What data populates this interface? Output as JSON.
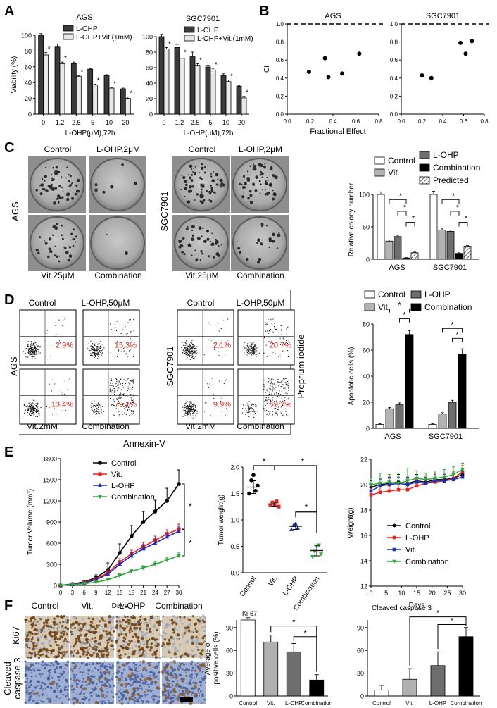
{
  "panels": {
    "A": "A",
    "B": "B",
    "C": "C",
    "D": "D",
    "E": "E",
    "F": "F"
  },
  "chart_data": [
    {
      "id": "A_AGS",
      "type": "bar",
      "title": "AGS",
      "xlabel": "L-OHP(μM),72h",
      "ylabel": "Viability (%)",
      "ylim": [
        0,
        100
      ],
      "yticks": [
        "0",
        "20",
        "40",
        "60",
        "80",
        "100"
      ],
      "categories": [
        "0",
        "1.2",
        "2.5",
        "5",
        "10",
        "20"
      ],
      "series": [
        {
          "name": "L-OHP",
          "values": [
            100,
            85,
            64,
            57,
            49,
            32
          ],
          "err": [
            2,
            4,
            2,
            1,
            1,
            1
          ]
        },
        {
          "name": "L-OHP+Vit.(1mM)",
          "values": [
            75,
            64,
            48,
            37,
            33,
            20
          ],
          "err": [
            3,
            2,
            1,
            1,
            1,
            2
          ]
        }
      ],
      "sig": [
        "*",
        "*",
        "*",
        "*",
        "*",
        "*"
      ]
    },
    {
      "id": "A_SGC7901",
      "type": "bar",
      "title": "SGC7901",
      "xlabel": "L-OHP(μM),72h",
      "ylabel": "",
      "ylim": [
        0,
        100
      ],
      "yticks": [
        "0",
        "20",
        "40",
        "60",
        "80",
        "100"
      ],
      "categories": [
        "0",
        "1.2",
        "2.5",
        "5",
        "10",
        "20"
      ],
      "series": [
        {
          "name": "L-OHP",
          "values": [
            100,
            86,
            74,
            61,
            50,
            36
          ],
          "err": [
            3,
            4,
            6,
            2,
            2,
            1
          ]
        },
        {
          "name": "L-OHP+Vit.(1mM)",
          "values": [
            84,
            72,
            63,
            57,
            42,
            21
          ],
          "err": [
            2,
            3,
            2,
            2,
            2,
            2
          ]
        }
      ],
      "sig": [
        "*",
        "*",
        "*",
        "*",
        "*",
        "*"
      ]
    },
    {
      "id": "B_AGS",
      "type": "scatter",
      "title": "AGS",
      "xlabel": "Fractional Effect",
      "ylabel": "CI",
      "xlim": [
        0,
        0.8
      ],
      "ylim": [
        0,
        1.0
      ],
      "xticks": [
        "0.0",
        "0.2",
        "0.4",
        "0.6",
        "0.8"
      ],
      "yticks": [
        "0.0",
        "0.2",
        "0.4",
        "0.6",
        "0.8",
        "1.0"
      ],
      "points": [
        [
          0.19,
          0.47
        ],
        [
          0.33,
          0.62
        ],
        [
          0.36,
          0.41
        ],
        [
          0.48,
          0.45
        ],
        [
          0.63,
          0.67
        ]
      ],
      "reference_line": 1.0
    },
    {
      "id": "B_SGC7901",
      "type": "scatter",
      "title": "SGC7901",
      "xlabel": "",
      "ylabel": "",
      "xlim": [
        0,
        0.8
      ],
      "ylim": [
        0,
        1.0
      ],
      "xticks": [
        "0.0",
        "0.2",
        "0.4",
        "0.6",
        "0.8"
      ],
      "yticks": [
        "0.0",
        "0.2",
        "0.4",
        "0.6",
        "0.8",
        "1.0"
      ],
      "points": [
        [
          0.2,
          0.43
        ],
        [
          0.29,
          0.4
        ],
        [
          0.57,
          0.79
        ],
        [
          0.62,
          0.67
        ],
        [
          0.68,
          0.81
        ]
      ],
      "reference_line": 1.0
    },
    {
      "id": "C_bar",
      "type": "bar",
      "title": "",
      "xlabel": "",
      "ylabel": "Relative colony number",
      "ylim": [
        0,
        100
      ],
      "yticks": [
        "0",
        "50",
        "100"
      ],
      "categories": [
        "AGS",
        "SGC7901"
      ],
      "series": [
        {
          "name": "Control",
          "values": [
            100,
            100
          ],
          "err": [
            4,
            5
          ]
        },
        {
          "name": "Vit.",
          "values": [
            28,
            45
          ],
          "err": [
            2,
            2
          ]
        },
        {
          "name": "L-OHP",
          "values": [
            35,
            43
          ],
          "err": [
            2,
            2
          ]
        },
        {
          "name": "Combination",
          "values": [
            2,
            9
          ],
          "err": [
            0.5,
            1
          ]
        },
        {
          "name": "Predicted",
          "values": [
            10,
            20
          ],
          "err": [
            1,
            1
          ]
        }
      ],
      "sig": [
        "*",
        "*",
        "*"
      ]
    },
    {
      "id": "D_bar",
      "type": "bar",
      "title": "",
      "xlabel": "",
      "ylabel": "Apoptotic cells (%)",
      "ylim": [
        0,
        80
      ],
      "yticks": [
        "0",
        "20",
        "40",
        "60",
        "80"
      ],
      "categories": [
        "AGS",
        "SGC7901"
      ],
      "series": [
        {
          "name": "Control",
          "values": [
            3,
            3
          ],
          "err": [
            0.5,
            0.5
          ]
        },
        {
          "name": "Vit.",
          "values": [
            15,
            11
          ],
          "err": [
            1,
            1
          ]
        },
        {
          "name": "L-OHP",
          "values": [
            18,
            20
          ],
          "err": [
            1.5,
            1.5
          ]
        },
        {
          "name": "Combination",
          "values": [
            72,
            57
          ],
          "err": [
            3,
            4
          ]
        }
      ],
      "sig": [
        "*",
        "*"
      ]
    },
    {
      "id": "E_volume",
      "type": "line",
      "title": "",
      "xlabel": "Days",
      "ylabel": "Tumor Volume (mm³)",
      "ylim": [
        0,
        1800
      ],
      "yticks": [
        "0",
        "300",
        "600",
        "900",
        "1200",
        "1500",
        "1800"
      ],
      "x": [
        0,
        3,
        6,
        9,
        12,
        15,
        18,
        21,
        24,
        27,
        30
      ],
      "xticks": [
        "0",
        "3",
        "6",
        "9",
        "12",
        "15",
        "18",
        "21",
        "24",
        "27",
        "30"
      ],
      "series": [
        {
          "name": "Control",
          "values": [
            0,
            20,
            50,
            110,
            220,
            460,
            700,
            900,
            1050,
            1200,
            1440
          ],
          "err": [
            0,
            0,
            10,
            40,
            100,
            130,
            150,
            150,
            160,
            180,
            200
          ]
        },
        {
          "name": "Vit.",
          "values": [
            0,
            15,
            40,
            90,
            180,
            330,
            450,
            550,
            640,
            730,
            800
          ],
          "err": [
            0,
            0,
            8,
            15,
            40,
            50,
            50,
            60,
            60,
            60,
            70
          ]
        },
        {
          "name": "L-OHP",
          "values": [
            0,
            15,
            35,
            80,
            160,
            300,
            420,
            520,
            600,
            690,
            770
          ],
          "err": [
            0,
            0,
            8,
            15,
            40,
            50,
            50,
            60,
            60,
            60,
            70
          ]
        },
        {
          "name": "Combination",
          "values": [
            0,
            10,
            25,
            45,
            80,
            140,
            200,
            250,
            300,
            360,
            420
          ],
          "err": [
            0,
            0,
            5,
            10,
            20,
            30,
            30,
            30,
            40,
            40,
            50
          ]
        }
      ],
      "sig": [
        "*",
        "*"
      ]
    },
    {
      "id": "E_weight_tumor",
      "type": "scatter",
      "title": "",
      "xlabel": "",
      "ylabel": "Tumor weight(g)",
      "ylim": [
        0,
        2.0
      ],
      "yticks": [
        "0.0",
        "0.5",
        "1.0",
        "1.5",
        "2.0"
      ],
      "categories": [
        "Control",
        "Vit.",
        "L-OHP",
        "Combination"
      ],
      "means": [
        1.62,
        1.3,
        0.88,
        0.42
      ],
      "err": [
        0.12,
        0.04,
        0.06,
        0.1
      ],
      "points": [
        [
          1.5,
          1.75,
          1.85,
          1.55,
          1.65
        ],
        [
          1.28,
          1.33,
          1.3,
          1.35,
          1.25
        ],
        [
          0.82,
          0.9,
          0.93,
          0.85
        ],
        [
          0.3,
          0.4,
          0.5,
          0.52,
          0.35
        ]
      ],
      "sig": [
        "*",
        "*",
        "*"
      ]
    },
    {
      "id": "E_body_weight",
      "type": "line",
      "title": "",
      "xlabel": "Days",
      "ylabel": "Weight(g)",
      "ylim": [
        12,
        22
      ],
      "yticks": [
        "12",
        "14",
        "16",
        "18",
        "20",
        "22"
      ],
      "x": [
        0,
        3,
        6,
        9,
        12,
        15,
        18,
        21,
        24,
        27,
        30
      ],
      "xticks": [
        "0",
        "5",
        "10",
        "15",
        "20",
        "25",
        "30"
      ],
      "series": [
        {
          "name": "Control",
          "values": [
            19.8,
            20.0,
            20.1,
            20.2,
            20.1,
            20.3,
            20.2,
            20.4,
            20.4,
            20.5,
            20.8
          ],
          "err": [
            0.5,
            0.5,
            0.5,
            0.6,
            0.5,
            0.5,
            0.5,
            0.5,
            0.5,
            0.5,
            0.5
          ]
        },
        {
          "name": "L-OHP",
          "values": [
            19.2,
            19.4,
            19.5,
            19.6,
            19.6,
            19.9,
            20.1,
            20.2,
            20.3,
            20.5,
            21.0
          ],
          "err": [
            0.5,
            0.5,
            0.5,
            0.5,
            0.5,
            0.5,
            0.5,
            0.5,
            0.5,
            0.5,
            0.5
          ]
        },
        {
          "name": "Vit.",
          "values": [
            19.5,
            19.9,
            20.0,
            20.1,
            20.0,
            20.2,
            20.1,
            20.3,
            20.3,
            20.4,
            20.6
          ],
          "err": [
            0.5,
            0.5,
            0.5,
            0.5,
            0.5,
            0.5,
            0.5,
            0.5,
            0.5,
            0.5,
            0.5
          ]
        },
        {
          "name": "Combination",
          "values": [
            20.0,
            20.1,
            20.2,
            20.1,
            20.3,
            20.5,
            20.4,
            20.5,
            20.6,
            20.8,
            21.2
          ],
          "err": [
            0.5,
            0.8,
            0.6,
            0.8,
            1.0,
            0.6,
            0.5,
            0.5,
            0.6,
            0.6,
            0.5
          ]
        }
      ]
    },
    {
      "id": "F_ki67",
      "type": "bar",
      "title": "Ki-67",
      "xlabel": "",
      "ylabel": "Average of positive cells (%)",
      "ylim": [
        0,
        100
      ],
      "yticks": [
        "0",
        "30",
        "60",
        "90"
      ],
      "categories": [
        "Control",
        "Vit.",
        "L-OHP",
        "Combination"
      ],
      "values": [
        100,
        71,
        58,
        21
      ],
      "err": [
        3,
        9,
        11,
        7
      ],
      "sig": [
        "*",
        "*"
      ]
    },
    {
      "id": "F_casp3",
      "type": "bar",
      "title": "Cleaved caspase 3",
      "xlabel": "",
      "ylabel": "",
      "ylim": [
        0,
        100
      ],
      "yticks": [
        "0",
        "30",
        "60",
        "90"
      ],
      "categories": [
        "Control",
        "Vit.",
        "L-OHP",
        "Combination"
      ],
      "values": [
        8,
        22,
        40,
        78
      ],
      "err": [
        6,
        14,
        18,
        12
      ],
      "sig": [
        "*",
        "*"
      ]
    }
  ],
  "panel_C": {
    "AGS": {
      "row_label": "AGS",
      "top_left": "Control",
      "top_right": "L-OHP,2μM",
      "bottom_left": "Vit.25μM",
      "bottom_right": "Combination"
    },
    "SGC7901": {
      "row_label": "SGC7901",
      "top_left": "Control",
      "top_right": "L-OHP,2μM",
      "bottom_left": "Vit.25μM",
      "bottom_right": "Combination"
    }
  },
  "panel_D": {
    "AGS": {
      "row_label": "AGS",
      "top_left": "Control",
      "top_right": "L-OHP,50μM",
      "bottom_left": "Vit.2mM",
      "bottom_right": "Combination",
      "percents": [
        "2.9%",
        "15.3%",
        "13.4%",
        "79.1%"
      ]
    },
    "SGC7901": {
      "row_label": "SGC7901",
      "top_left": "Control",
      "top_right": "L-OHP,50μM",
      "bottom_left": "Vit.2mM",
      "bottom_right": "Combination",
      "percents": [
        "2.1%",
        "20.7%",
        "9.9%",
        "59.7%"
      ]
    },
    "x_axis": "Annexin-V",
    "y_axis": "Proprium iodide"
  },
  "panel_F": {
    "columns": [
      "Control",
      "Vit.",
      "L-OHP",
      "Combination"
    ],
    "rows": [
      "Ki67",
      "Cleaved caspase 3"
    ],
    "colors": {
      "ki67": "#a98964",
      "casp": "#7d8fb8"
    }
  }
}
